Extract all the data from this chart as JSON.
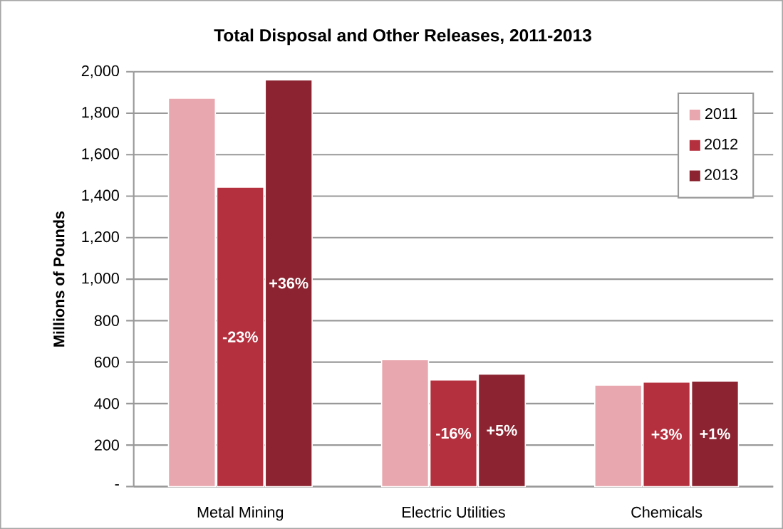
{
  "chart_data": {
    "type": "bar",
    "title": "Total Disposal and Other Releases, 2011-2013",
    "ylabel": "Millions of Pounds",
    "categories": [
      "Metal Mining",
      "Electric Utilities",
      "Chemicals"
    ],
    "series": [
      {
        "name": "2011",
        "color": "#e8a7ae",
        "values": [
          1872,
          612,
          489
        ]
      },
      {
        "name": "2012",
        "color": "#b5303e",
        "values": [
          1443,
          514,
          504
        ]
      },
      {
        "name": "2013",
        "color": "#8b2330",
        "values": [
          1961,
          542,
          509
        ]
      }
    ],
    "annotations": [
      "-23%",
      "+36%",
      "-16%",
      "+5%",
      "+3%",
      "+1%"
    ],
    "ylim": [
      0,
      2000
    ],
    "yticks": [
      {
        "value": 0,
        "label": "-"
      },
      {
        "value": 200,
        "label": "200"
      },
      {
        "value": 400,
        "label": "400"
      },
      {
        "value": 600,
        "label": "600"
      },
      {
        "value": 800,
        "label": "800"
      },
      {
        "value": 1000,
        "label": "1,000"
      },
      {
        "value": 1200,
        "label": "1,200"
      },
      {
        "value": 1400,
        "label": "1,400"
      },
      {
        "value": 1600,
        "label": "1,600"
      },
      {
        "value": 1800,
        "label": "1,800"
      },
      {
        "value": 2000,
        "label": "2,000"
      }
    ],
    "grid": "y",
    "legend": "top right"
  }
}
